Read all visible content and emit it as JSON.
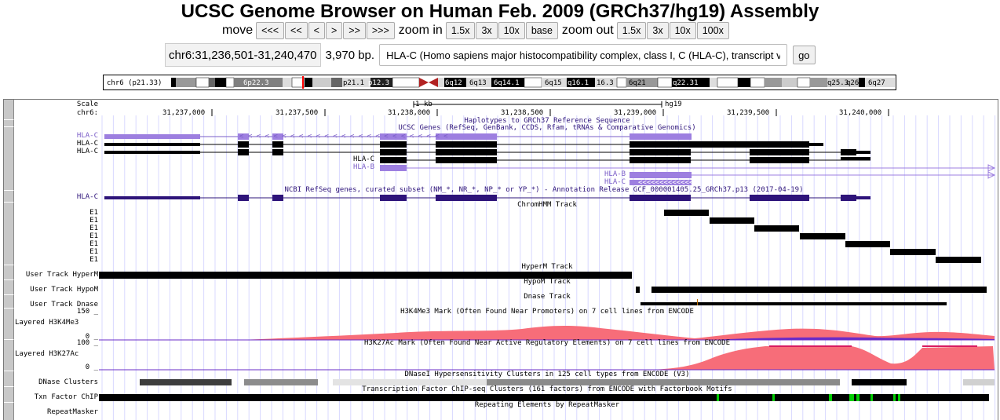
{
  "title": "UCSC Genome Browser on Human Feb. 2009 (GRCh37/hg19) Assembly",
  "nav": {
    "move_label": "move",
    "move_buttons": [
      "<<<",
      "<<",
      "<",
      ">",
      ">>",
      ">>>"
    ],
    "zoom_in_label": "zoom in",
    "zoom_in_buttons": [
      "1.5x",
      "3x",
      "10x",
      "base"
    ],
    "zoom_out_label": "zoom out",
    "zoom_out_buttons": [
      "1.5x",
      "3x",
      "10x",
      "100x"
    ]
  },
  "position": {
    "range": "chr6:31,236,501-31,240,470",
    "size": "3,970 bp.",
    "search_value": "HLA-C (Homo sapiens major histocompatibility complex, class I, C (HLA-C), transcript v",
    "go_label": "go"
  },
  "ideogram": {
    "chrom_label": "chr6 (p21.33)",
    "bands": [
      "6p22.3",
      "p21.1",
      "p12.3",
      "6q12",
      "6q13",
      "6q14.1",
      "6q15",
      "q16.1",
      "16.3",
      "6q21",
      "q22.31",
      "q25.3",
      "q26",
      "6q27"
    ],
    "highlight_color": "#ff0000",
    "centromere_color": "#b22222"
  },
  "ruler": {
    "scale_label": "Scale",
    "chrom_label": "chr6:",
    "scale_bar_text": "1 kb",
    "assembly": "hg19",
    "ticks": [
      "31,237,000",
      "31,237,500",
      "31,238,000",
      "31,238,500",
      "31,239,000",
      "31,239,500",
      "31,240,000"
    ]
  },
  "tracks": {
    "haplotypes_title": "Haplotypes to GRCh37 Reference Sequence",
    "ucsc_genes_title": "UCSC Genes (RefSeq, GenBank, CCDS, Rfam, tRNAs & Comparative Genomics)",
    "ucsc_gene_labels": [
      "HLA-C",
      "HLA-C",
      "HLA-C",
      "HLA-C",
      "HLA-B",
      "HLA-B",
      "HLA-C"
    ],
    "refseq_title": "NCBI RefSeq genes, curated subset (NM_*, NR_*, NP_* or YP_*) - Annotation Release GCF_000001405.25_GRCh37.p13 (2017-04-19)",
    "refseq_label": "HLA-C",
    "chromhmm_title": "ChromHMM Track",
    "chromhmm_labels": [
      "E1",
      "E1",
      "E1",
      "E1",
      "E1",
      "E1",
      "E1"
    ],
    "hyperm_title": "HyperM Track",
    "hyperm_label": "User Track HyperM",
    "hypom_title": "HypoM Track",
    "hypom_label": "User Track HypoM",
    "dnase_title": "Dnase Track",
    "dnase_label": "User Track Dnase",
    "h3k4me3_title": "H3K4Me3 Mark (Often Found Near Promoters) on 7 cell lines from ENCODE",
    "h3k4me3_label": "Layered H3K4Me3",
    "h3k4me3_max": "150 _",
    "h3k4me3_min": "0 _",
    "h3k27ac_title": "H3K27Ac Mark (Often Found Near Active Regulatory Elements) on 7 cell lines from ENCODE",
    "h3k27ac_label": "Layered H3K27Ac",
    "h3k27ac_max": "100 _",
    "h3k27ac_min": "0 _",
    "dnase_clusters_title": "DNaseI Hypersensitivity Clusters in 125 cell types from ENCODE (V3)",
    "dnase_clusters_label": "DNase Clusters",
    "tfbs_title": "Transcription Factor ChIP-seq Clusters (161 factors) from ENCODE with Factorbook Motifs",
    "tfbs_label": "Txn Factor ChIP",
    "rmsk_title": "Repeating Elements by RepeatMasker",
    "rmsk_label": "RepeatMasker"
  },
  "colors": {
    "ucsc_gene": "#7a5cc7",
    "ucsc_gene_light": "#9d7fe0",
    "refseq": "#2e147a",
    "h3k4me3_fill": "#f76d79",
    "h3k27ac_fill": "#f76d79",
    "tfbs_motif": "#00cc00",
    "grid": "#d8d8ff"
  }
}
